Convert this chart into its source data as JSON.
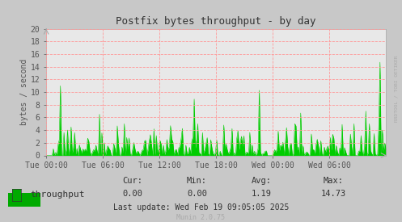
{
  "title": "Postfix bytes throughput - by day",
  "ylabel": "bytes / second",
  "ylim": [
    0,
    20
  ],
  "yticks": [
    0,
    2,
    4,
    6,
    8,
    10,
    12,
    14,
    16,
    18,
    20
  ],
  "xlabels": [
    "Tue 00:00",
    "Tue 06:00",
    "Tue 12:00",
    "Tue 18:00",
    "Wed 00:00",
    "Wed 06:00"
  ],
  "bg_color": "#c8c8c8",
  "plot_bg_color": "#e8e8e8",
  "grid_color": "#ff9999",
  "line_color": "#00cc00",
  "fill_color": "#00cc00",
  "text_color": "#555555",
  "legend_label": "throughput",
  "legend_color": "#00aa00",
  "stats_cur": "0.00",
  "stats_min": "0.00",
  "stats_avg": "1.19",
  "stats_max": "14.73",
  "last_update": "Last update: Wed Feb 19 09:05:05 2025",
  "munin_version": "Munin 2.0.75",
  "rrdtool_label": "RRDTOOL / TOBI OETIKER",
  "num_points": 288,
  "base_pattern_seed": 7
}
